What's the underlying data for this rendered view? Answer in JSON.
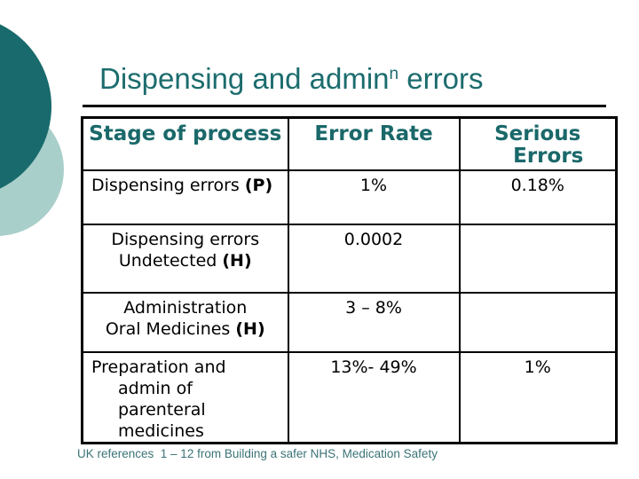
{
  "colors": {
    "accent_teal_dark": "#186a6c",
    "accent_teal_light": "#a9cfca",
    "title_text": "#1c6c6e",
    "header_text": "#1a686a",
    "footer_text": "#3b7376",
    "body_text": "#000000",
    "border": "#000000"
  },
  "title": {
    "main": "Dispensing and admin",
    "superscript": "n",
    "rest": " errors"
  },
  "table": {
    "headers": {
      "col1": "Stage of process",
      "col2": "Error Rate",
      "col3_line1": "Serious",
      "col3_line2": "Errors"
    },
    "rows": [
      {
        "stage_l1": "Dispensing errors ",
        "stage_l1_bold": "(P)",
        "error_rate": "1%",
        "serious": "0.18%"
      },
      {
        "stage_l1": "Dispensing errors",
        "stage_l2": "Undetected ",
        "stage_l2_bold": "(H)",
        "error_rate": "0.0002",
        "serious": ""
      },
      {
        "stage_l1": "Administration",
        "stage_l2": "Oral Medicines ",
        "stage_l2_bold": "(H)",
        "error_rate": "3 – 8%",
        "serious": ""
      },
      {
        "stage_l1": "Preparation and",
        "stage_l2": "admin of",
        "stage_l3": "parenteral",
        "stage_l4": "medicines",
        "error_rate": "13%- 49%",
        "serious": "1%"
      }
    ]
  },
  "footer": {
    "text": "UK references  1 – 12 from Building a safer NHS, Medication Safety"
  }
}
